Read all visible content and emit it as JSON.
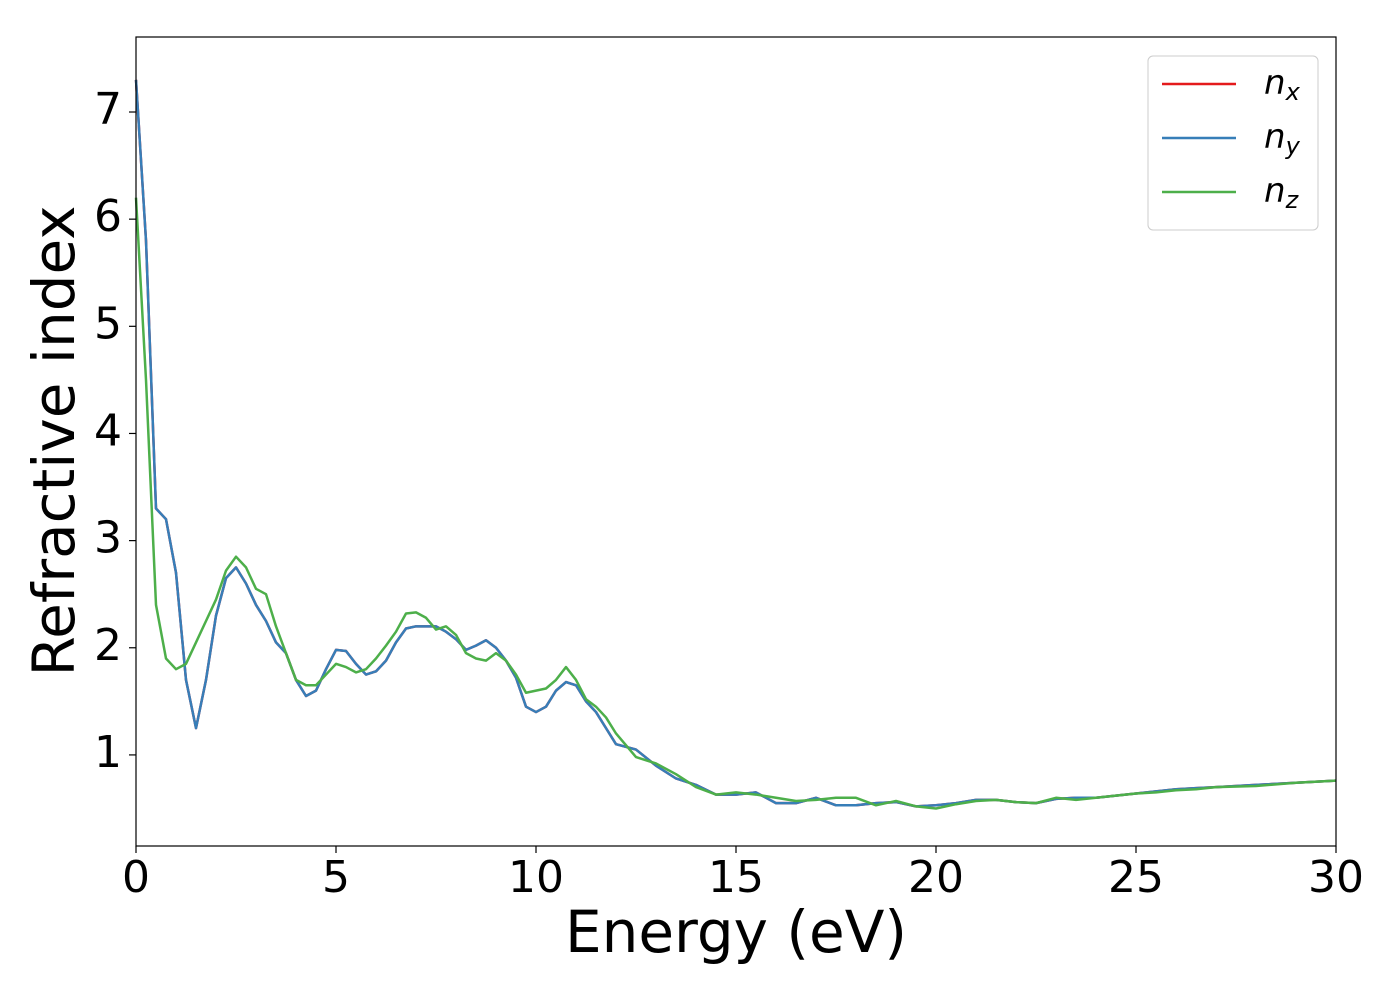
{
  "chart_data": {
    "type": "line",
    "xlabel": "Energy (eV)",
    "ylabel": "Refractive index",
    "x": [
      0,
      0.25,
      0.5,
      0.75,
      1,
      1.25,
      1.5,
      1.75,
      2,
      2.25,
      2.5,
      2.75,
      3,
      3.25,
      3.5,
      3.75,
      4,
      4.25,
      4.5,
      4.75,
      5,
      5.25,
      5.5,
      5.75,
      6,
      6.25,
      6.5,
      6.75,
      7,
      7.25,
      7.5,
      7.75,
      8,
      8.25,
      8.5,
      8.75,
      9,
      9.25,
      9.5,
      9.75,
      10,
      10.25,
      10.5,
      10.75,
      11,
      11.25,
      11.5,
      11.75,
      12,
      12.5,
      13,
      13.5,
      14,
      14.5,
      15,
      15.5,
      16,
      16.5,
      17,
      17.5,
      18,
      18.5,
      19,
      19.5,
      20,
      20.5,
      21,
      21.5,
      22,
      22.5,
      23,
      23.5,
      24,
      24.5,
      25,
      25.5,
      26,
      26.5,
      27,
      28,
      29,
      30
    ],
    "series": [
      {
        "name": "nx",
        "color": "#e41a1c",
        "values": [
          7.3,
          5.8,
          3.3,
          3.2,
          2.7,
          1.7,
          1.25,
          1.7,
          2.3,
          2.65,
          2.75,
          2.6,
          2.4,
          2.25,
          2.05,
          1.95,
          1.7,
          1.55,
          1.6,
          1.8,
          1.98,
          1.97,
          1.85,
          1.75,
          1.78,
          1.88,
          2.05,
          2.18,
          2.2,
          2.2,
          2.2,
          2.15,
          2.08,
          1.98,
          2.02,
          2.07,
          2.0,
          1.88,
          1.72,
          1.45,
          1.4,
          1.45,
          1.6,
          1.68,
          1.65,
          1.5,
          1.4,
          1.25,
          1.1,
          1.05,
          0.9,
          0.78,
          0.72,
          0.63,
          0.63,
          0.65,
          0.55,
          0.55,
          0.6,
          0.53,
          0.53,
          0.55,
          0.56,
          0.52,
          0.53,
          0.55,
          0.58,
          0.58,
          0.56,
          0.55,
          0.59,
          0.6,
          0.6,
          0.62,
          0.64,
          0.66,
          0.68,
          0.69,
          0.7,
          0.72,
          0.74,
          0.76
        ]
      },
      {
        "name": "ny",
        "color": "#377eb8",
        "values": [
          7.3,
          5.8,
          3.3,
          3.2,
          2.7,
          1.7,
          1.25,
          1.7,
          2.3,
          2.65,
          2.75,
          2.6,
          2.4,
          2.25,
          2.05,
          1.95,
          1.7,
          1.55,
          1.6,
          1.8,
          1.98,
          1.97,
          1.85,
          1.75,
          1.78,
          1.88,
          2.05,
          2.18,
          2.2,
          2.2,
          2.2,
          2.15,
          2.08,
          1.98,
          2.02,
          2.07,
          2.0,
          1.88,
          1.72,
          1.45,
          1.4,
          1.45,
          1.6,
          1.68,
          1.65,
          1.5,
          1.4,
          1.25,
          1.1,
          1.05,
          0.9,
          0.78,
          0.72,
          0.63,
          0.63,
          0.65,
          0.55,
          0.55,
          0.6,
          0.53,
          0.53,
          0.55,
          0.56,
          0.52,
          0.53,
          0.55,
          0.58,
          0.58,
          0.56,
          0.55,
          0.59,
          0.6,
          0.6,
          0.62,
          0.64,
          0.66,
          0.68,
          0.69,
          0.7,
          0.72,
          0.74,
          0.76
        ]
      },
      {
        "name": "nz",
        "color": "#4daf4a",
        "values": [
          6.2,
          4.5,
          2.4,
          1.9,
          1.8,
          1.85,
          2.05,
          2.25,
          2.45,
          2.72,
          2.85,
          2.75,
          2.55,
          2.5,
          2.2,
          1.95,
          1.7,
          1.65,
          1.65,
          1.75,
          1.85,
          1.82,
          1.77,
          1.8,
          1.9,
          2.02,
          2.15,
          2.32,
          2.33,
          2.28,
          2.17,
          2.2,
          2.12,
          1.95,
          1.9,
          1.88,
          1.95,
          1.88,
          1.75,
          1.58,
          1.6,
          1.62,
          1.7,
          1.82,
          1.7,
          1.52,
          1.45,
          1.35,
          1.2,
          0.98,
          0.92,
          0.82,
          0.7,
          0.63,
          0.65,
          0.63,
          0.6,
          0.57,
          0.58,
          0.6,
          0.6,
          0.53,
          0.57,
          0.52,
          0.5,
          0.54,
          0.57,
          0.58,
          0.56,
          0.55,
          0.6,
          0.58,
          0.6,
          0.62,
          0.64,
          0.65,
          0.67,
          0.68,
          0.7,
          0.71,
          0.74,
          0.76
        ]
      }
    ],
    "xlim": [
      0,
      30
    ],
    "xticks": [
      0,
      5,
      10,
      15,
      20,
      25,
      30
    ],
    "ylim": [
      0.15,
      7.7
    ],
    "yticks": [
      1,
      2,
      3,
      4,
      5,
      6,
      7
    ],
    "grid": false,
    "legend": "upper right"
  }
}
